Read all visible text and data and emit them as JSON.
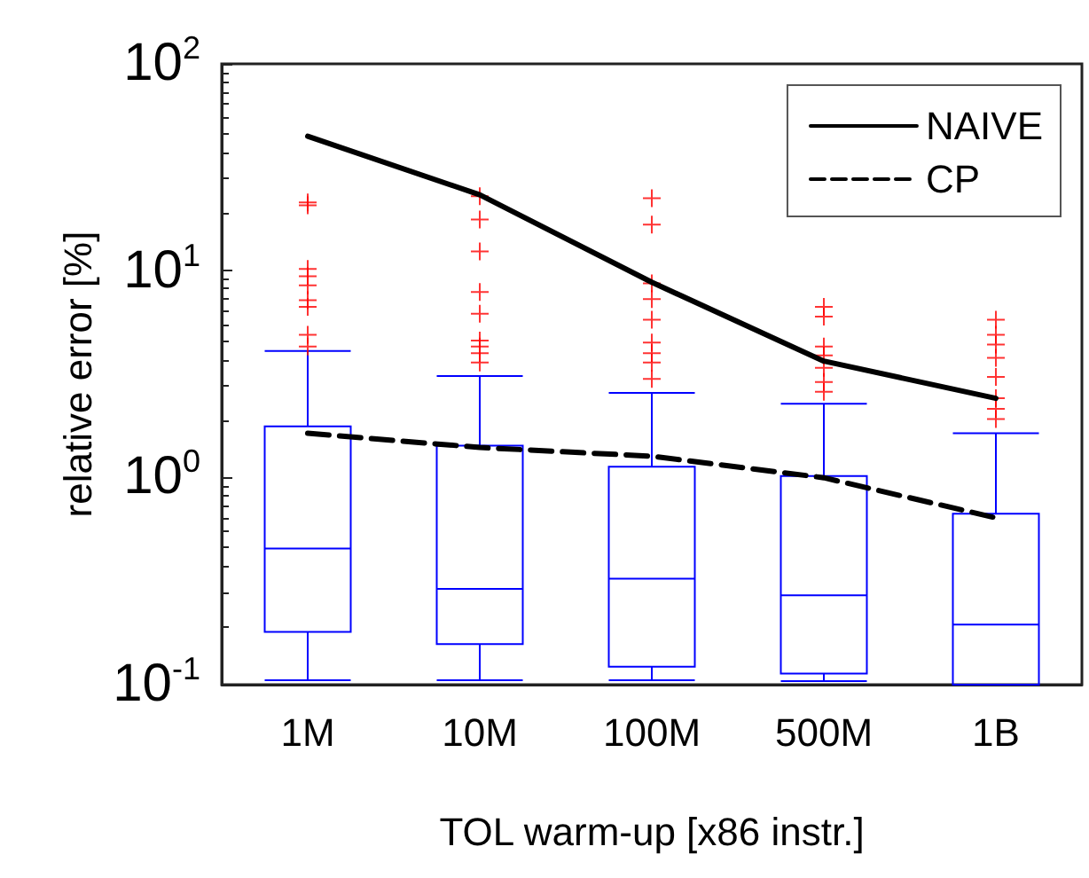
{
  "chart_data": {
    "type": "box",
    "xlabel": "TOL warm-up [x86 instr.]",
    "ylabel": "relative error [%]",
    "categories": [
      "1M",
      "10M",
      "100M",
      "500M",
      "1B"
    ],
    "log": "y",
    "ylim": [
      0.1,
      100
    ],
    "yticks": [
      {
        "value": 0.1,
        "label": "10$^{-1}$"
      },
      {
        "value": 1,
        "label": "10$^{0}$"
      },
      {
        "value": 10,
        "label": "10$^{1}$"
      },
      {
        "value": 100,
        "label": "10$^{2}$"
      }
    ],
    "grid": false,
    "legend": "top right",
    "series": [
      {
        "color": "#0000ff",
        "boxes": [
          {
            "low": 0.105,
            "q1": 0.18,
            "median": 0.455,
            "q3": 1.77,
            "high": 4.1,
            "outliers": [
              21.4,
              20.7,
              10.2,
              9.4,
              8.5,
              7.2,
              6.7,
              4.9,
              4.3
            ]
          },
          {
            "low": 0.105,
            "q1": 0.157,
            "median": 0.29,
            "q3": 1.43,
            "high": 3.1,
            "outliers": [
              22.9,
              17.7,
              12.4,
              7.9,
              6.2,
              4.6,
              4.3,
              4.0,
              3.6
            ]
          },
          {
            "low": 0.105,
            "q1": 0.122,
            "median": 0.325,
            "q3": 1.13,
            "high": 2.57,
            "outliers": [
              22.4,
              16.7,
              8.7,
              7.3,
              5.8,
              4.5,
              4.0,
              3.6,
              3.0
            ]
          },
          {
            "low": 0.104,
            "q1": 0.113,
            "median": 0.27,
            "q3": 1.02,
            "high": 2.28,
            "outliers": [
              6.7,
              6.0,
              4.3,
              3.9,
              3.4,
              2.9,
              2.6
            ]
          },
          {
            "low": 0.1,
            "q1": 0.1,
            "median": 0.195,
            "q3": 0.67,
            "high": 1.64,
            "outliers": [
              5.8,
              4.9,
              4.4,
              3.8,
              3.07,
              2.42,
              2.15,
              1.92
            ]
          }
        ]
      },
      {
        "type": "line",
        "name": "NAIVE",
        "color": "#000000",
        "line_style": "solid",
        "marker": "none",
        "values": [
          44.7,
          23.3,
          8.8,
          3.66,
          2.42
        ]
      },
      {
        "type": "line",
        "name": "CP",
        "color": "#000000",
        "line_style": "dashed",
        "marker": "none",
        "values": [
          1.64,
          1.4,
          1.27,
          1.0,
          0.64
        ]
      }
    ]
  }
}
